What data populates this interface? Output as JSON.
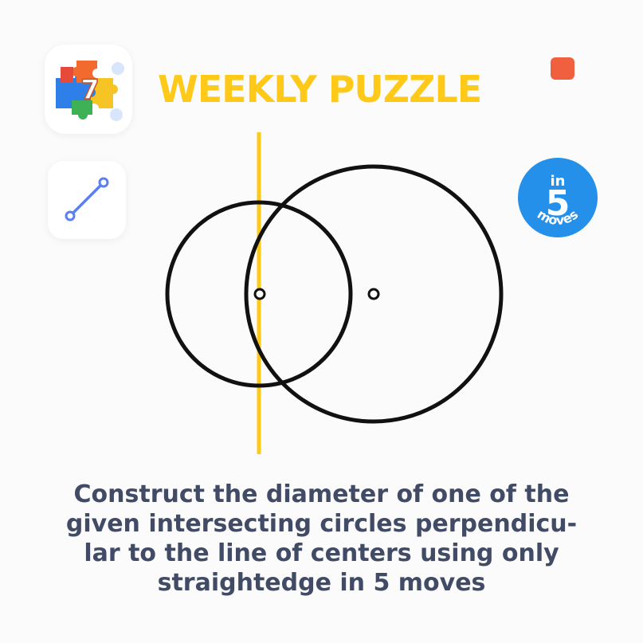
{
  "header": {
    "title": "WEEKLY PUZZLE",
    "app_icon": {
      "name": "puzzle-piece-icon",
      "number": "7"
    },
    "stop_indicator": {
      "color": "#f0603f"
    }
  },
  "tools": [
    {
      "name": "segment-tool-icon",
      "color": "#5b7ff0"
    }
  ],
  "badge": {
    "top": "in",
    "number": "5",
    "bottom": "moves",
    "color": "#2490ea"
  },
  "construction": {
    "line_color": "#ffc91a",
    "circle_color": "#111111"
  },
  "instruction": {
    "lines": [
      "Construct the diameter of one of the",
      "given intersecting circles perpendicu-",
      "lar to the line of centers using only",
      "straightedge in 5 moves"
    ]
  }
}
